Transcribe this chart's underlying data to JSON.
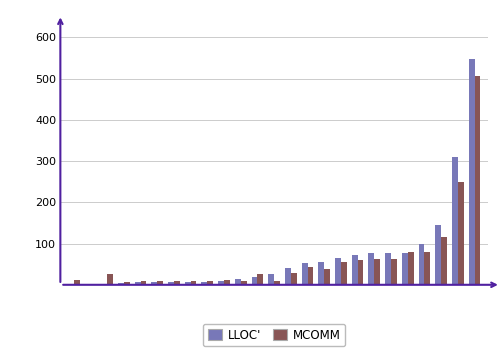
{
  "lloc_values": [
    0,
    1,
    0,
    5,
    7,
    7,
    7,
    7,
    7,
    8,
    13,
    20,
    27,
    40,
    52,
    55,
    65,
    72,
    78,
    78,
    78,
    100,
    145,
    310,
    548
  ],
  "mcomm_values": [
    12,
    2,
    25,
    7,
    10,
    9,
    9,
    9,
    8,
    11,
    10,
    27,
    10,
    28,
    42,
    38,
    55,
    60,
    62,
    62,
    80,
    80,
    115,
    248,
    505
  ],
  "bar_color_lloc": "#7878b8",
  "bar_color_mcomm": "#885555",
  "legend_lloc": "LLOC'",
  "legend_mcomm": "MCOMM",
  "ylim": [
    0,
    630
  ],
  "yticks": [
    100,
    200,
    300,
    400,
    500,
    600
  ],
  "background_color": "#ffffff",
  "grid_color": "#cccccc",
  "axis_color": "#5020a0",
  "bar_width": 0.35
}
